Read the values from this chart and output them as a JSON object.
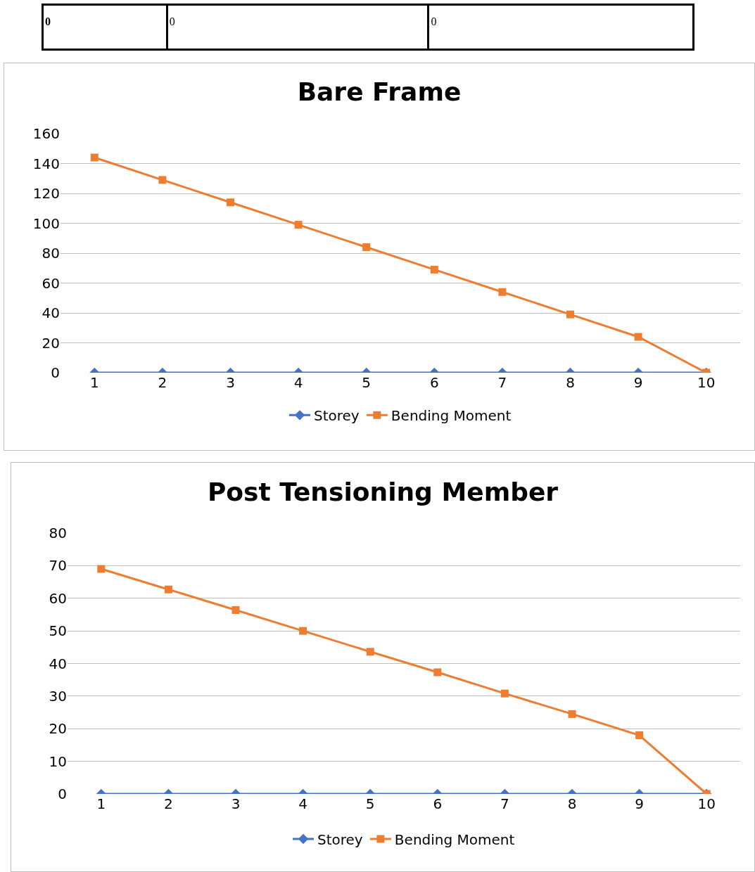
{
  "chart_data": [
    {
      "type": "other",
      "annotations": [
        "0",
        "0",
        "0"
      ]
    },
    {
      "type": "line",
      "title": "Bare Frame",
      "categories": [
        "1",
        "2",
        "3",
        "4",
        "5",
        "6",
        "7",
        "8",
        "9",
        "10"
      ],
      "ylim": [
        0,
        160
      ],
      "yticks": [
        0,
        20,
        40,
        60,
        80,
        100,
        120,
        140,
        160
      ],
      "grid": "y",
      "legend": "bottom",
      "line_style": "solid",
      "series": [
        {
          "name": "Storey",
          "color": "#4472c4",
          "marker": "diamond",
          "values": [
            0,
            0,
            0,
            0,
            0,
            0,
            0,
            0,
            0,
            0
          ]
        },
        {
          "name": "Bending Moment",
          "color": "#ed7d31",
          "marker": "square",
          "values": [
            144,
            129,
            114,
            99,
            84,
            69,
            54,
            39,
            24,
            0
          ]
        }
      ]
    },
    {
      "type": "line",
      "title": "Post Tensioning Member",
      "categories": [
        "1",
        "2",
        "3",
        "4",
        "5",
        "6",
        "7",
        "8",
        "9",
        "10"
      ],
      "ylim": [
        0,
        80
      ],
      "yticks": [
        0,
        10,
        20,
        30,
        40,
        50,
        60,
        70,
        80
      ],
      "grid": "y",
      "legend": "bottom",
      "line_style": "solid",
      "series": [
        {
          "name": "Storey",
          "color": "#4472c4",
          "marker": "diamond",
          "values": [
            0,
            0,
            0,
            0,
            0,
            0,
            0,
            0,
            0,
            0
          ]
        },
        {
          "name": "Bending Moment",
          "color": "#ed7d31",
          "marker": "square",
          "values": [
            69,
            62.7,
            56.4,
            50,
            43.6,
            37.3,
            30.8,
            24.5,
            18,
            0
          ]
        }
      ]
    }
  ]
}
